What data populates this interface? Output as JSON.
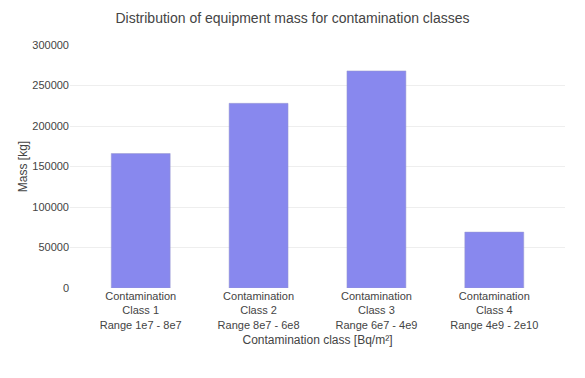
{
  "chart_data": {
    "type": "bar",
    "title": "Distribution of equipment mass for contamination classes",
    "categories": [
      "Contamination\nClass 1\nRange 1e7 - 8e7",
      "Contamination\nClass 2\nRange 8e7 - 6e8",
      "Contamination\nClass 3\nRange 6e7 - 4e9",
      "Contamination\nClass 4\nRange 4e9 - 2e10"
    ],
    "values": [
      166000,
      228000,
      268000,
      69000
    ],
    "color": "#8888ee",
    "xlabel": "Contamination class [Bq/m²]",
    "ylabel": "Mass [kg]",
    "ylim": [
      0,
      300000
    ],
    "yticks": [
      0,
      50000,
      100000,
      150000,
      200000,
      250000,
      300000
    ],
    "grid": true
  }
}
